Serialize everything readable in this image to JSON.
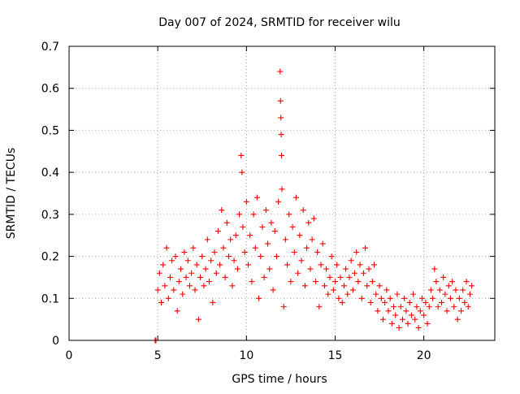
{
  "chart_data": {
    "type": "scatter",
    "title": "Day 007 of 2024, SRMTID for receiver wilu",
    "xlabel": "GPS time / hours",
    "ylabel": "SRMTID / TECUs",
    "xlim": [
      0,
      24
    ],
    "ylim": [
      0,
      0.7
    ],
    "x_ticks": [
      "0",
      "5",
      "10",
      "15",
      "20"
    ],
    "y_ticks": [
      "0",
      "0.1",
      "0.2",
      "0.3",
      "0.4",
      "0.5",
      "0.6",
      "0.7"
    ],
    "grid": true,
    "marker": "+",
    "series": [
      {
        "name": "SRMTID",
        "color": "#ff0000",
        "points": [
          [
            4.85,
            0.0
          ],
          [
            4.9,
            0.0
          ],
          [
            5.0,
            0.12
          ],
          [
            5.1,
            0.16
          ],
          [
            5.2,
            0.09
          ],
          [
            5.3,
            0.18
          ],
          [
            5.4,
            0.13
          ],
          [
            5.5,
            0.22
          ],
          [
            5.6,
            0.1
          ],
          [
            5.7,
            0.15
          ],
          [
            5.8,
            0.19
          ],
          [
            5.9,
            0.12
          ],
          [
            6.0,
            0.2
          ],
          [
            6.1,
            0.07
          ],
          [
            6.2,
            0.14
          ],
          [
            6.3,
            0.17
          ],
          [
            6.4,
            0.11
          ],
          [
            6.5,
            0.21
          ],
          [
            6.6,
            0.15
          ],
          [
            6.7,
            0.19
          ],
          [
            6.8,
            0.13
          ],
          [
            6.9,
            0.16
          ],
          [
            7.0,
            0.22
          ],
          [
            7.1,
            0.12
          ],
          [
            7.2,
            0.18
          ],
          [
            7.3,
            0.05
          ],
          [
            7.4,
            0.15
          ],
          [
            7.5,
            0.2
          ],
          [
            7.6,
            0.13
          ],
          [
            7.7,
            0.17
          ],
          [
            7.8,
            0.24
          ],
          [
            7.9,
            0.14
          ],
          [
            8.0,
            0.19
          ],
          [
            8.1,
            0.09
          ],
          [
            8.2,
            0.21
          ],
          [
            8.3,
            0.16
          ],
          [
            8.4,
            0.26
          ],
          [
            8.5,
            0.18
          ],
          [
            8.6,
            0.31
          ],
          [
            8.7,
            0.22
          ],
          [
            8.8,
            0.15
          ],
          [
            8.9,
            0.28
          ],
          [
            9.0,
            0.2
          ],
          [
            9.1,
            0.24
          ],
          [
            9.2,
            0.13
          ],
          [
            9.3,
            0.19
          ],
          [
            9.4,
            0.25
          ],
          [
            9.5,
            0.17
          ],
          [
            9.6,
            0.3
          ],
          [
            9.7,
            0.44
          ],
          [
            9.75,
            0.4
          ],
          [
            9.8,
            0.27
          ],
          [
            9.9,
            0.21
          ],
          [
            10.0,
            0.33
          ],
          [
            10.1,
            0.18
          ],
          [
            10.2,
            0.25
          ],
          [
            10.3,
            0.14
          ],
          [
            10.4,
            0.3
          ],
          [
            10.5,
            0.22
          ],
          [
            10.6,
            0.34
          ],
          [
            10.7,
            0.1
          ],
          [
            10.8,
            0.2
          ],
          [
            10.9,
            0.27
          ],
          [
            11.0,
            0.15
          ],
          [
            11.1,
            0.31
          ],
          [
            11.2,
            0.23
          ],
          [
            11.3,
            0.17
          ],
          [
            11.4,
            0.28
          ],
          [
            11.5,
            0.12
          ],
          [
            11.6,
            0.26
          ],
          [
            11.7,
            0.2
          ],
          [
            11.8,
            0.33
          ],
          [
            11.9,
            0.64
          ],
          [
            11.92,
            0.57
          ],
          [
            11.94,
            0.53
          ],
          [
            11.96,
            0.49
          ],
          [
            11.98,
            0.44
          ],
          [
            12.0,
            0.36
          ],
          [
            12.1,
            0.08
          ],
          [
            12.2,
            0.24
          ],
          [
            12.3,
            0.18
          ],
          [
            12.4,
            0.3
          ],
          [
            12.5,
            0.14
          ],
          [
            12.6,
            0.27
          ],
          [
            12.7,
            0.21
          ],
          [
            12.8,
            0.34
          ],
          [
            12.9,
            0.16
          ],
          [
            13.0,
            0.25
          ],
          [
            13.1,
            0.19
          ],
          [
            13.2,
            0.31
          ],
          [
            13.3,
            0.13
          ],
          [
            13.4,
            0.22
          ],
          [
            13.5,
            0.28
          ],
          [
            13.6,
            0.17
          ],
          [
            13.7,
            0.24
          ],
          [
            13.8,
            0.29
          ],
          [
            13.9,
            0.14
          ],
          [
            14.0,
            0.21
          ],
          [
            14.1,
            0.08
          ],
          [
            14.2,
            0.18
          ],
          [
            14.3,
            0.23
          ],
          [
            14.4,
            0.13
          ],
          [
            14.5,
            0.17
          ],
          [
            14.6,
            0.11
          ],
          [
            14.7,
            0.15
          ],
          [
            14.8,
            0.2
          ],
          [
            14.9,
            0.12
          ],
          [
            15.0,
            0.14
          ],
          [
            15.1,
            0.18
          ],
          [
            15.2,
            0.1
          ],
          [
            15.3,
            0.15
          ],
          [
            15.4,
            0.09
          ],
          [
            15.5,
            0.13
          ],
          [
            15.6,
            0.17
          ],
          [
            15.7,
            0.11
          ],
          [
            15.8,
            0.15
          ],
          [
            15.9,
            0.19
          ],
          [
            16.0,
            0.12
          ],
          [
            16.1,
            0.16
          ],
          [
            16.2,
            0.21
          ],
          [
            16.3,
            0.14
          ],
          [
            16.4,
            0.18
          ],
          [
            16.5,
            0.1
          ],
          [
            16.6,
            0.16
          ],
          [
            16.7,
            0.22
          ],
          [
            16.8,
            0.13
          ],
          [
            16.9,
            0.17
          ],
          [
            17.0,
            0.09
          ],
          [
            17.1,
            0.14
          ],
          [
            17.2,
            0.18
          ],
          [
            17.3,
            0.11
          ],
          [
            17.4,
            0.07
          ],
          [
            17.5,
            0.13
          ],
          [
            17.6,
            0.1
          ],
          [
            17.7,
            0.05
          ],
          [
            17.8,
            0.09
          ],
          [
            17.9,
            0.12
          ],
          [
            18.0,
            0.07
          ],
          [
            18.1,
            0.1
          ],
          [
            18.2,
            0.04
          ],
          [
            18.3,
            0.08
          ],
          [
            18.4,
            0.06
          ],
          [
            18.5,
            0.11
          ],
          [
            18.6,
            0.03
          ],
          [
            18.7,
            0.08
          ],
          [
            18.8,
            0.05
          ],
          [
            18.9,
            0.1
          ],
          [
            19.0,
            0.07
          ],
          [
            19.1,
            0.04
          ],
          [
            19.2,
            0.09
          ],
          [
            19.3,
            0.06
          ],
          [
            19.4,
            0.11
          ],
          [
            19.5,
            0.05
          ],
          [
            19.6,
            0.08
          ],
          [
            19.7,
            0.03
          ],
          [
            19.8,
            0.07
          ],
          [
            19.9,
            0.1
          ],
          [
            20.0,
            0.06
          ],
          [
            20.1,
            0.09
          ],
          [
            20.2,
            0.04
          ],
          [
            20.3,
            0.08
          ],
          [
            20.4,
            0.12
          ],
          [
            20.5,
            0.1
          ],
          [
            20.6,
            0.17
          ],
          [
            20.7,
            0.14
          ],
          [
            20.8,
            0.08
          ],
          [
            20.9,
            0.12
          ],
          [
            21.0,
            0.09
          ],
          [
            21.1,
            0.15
          ],
          [
            21.2,
            0.11
          ],
          [
            21.3,
            0.07
          ],
          [
            21.4,
            0.13
          ],
          [
            21.5,
            0.1
          ],
          [
            21.6,
            0.14
          ],
          [
            21.7,
            0.08
          ],
          [
            21.8,
            0.12
          ],
          [
            21.9,
            0.05
          ],
          [
            22.0,
            0.1
          ],
          [
            22.1,
            0.07
          ],
          [
            22.2,
            0.12
          ],
          [
            22.3,
            0.09
          ],
          [
            22.4,
            0.14
          ],
          [
            22.5,
            0.08
          ],
          [
            22.6,
            0.11
          ],
          [
            22.7,
            0.13
          ]
        ]
      }
    ]
  }
}
